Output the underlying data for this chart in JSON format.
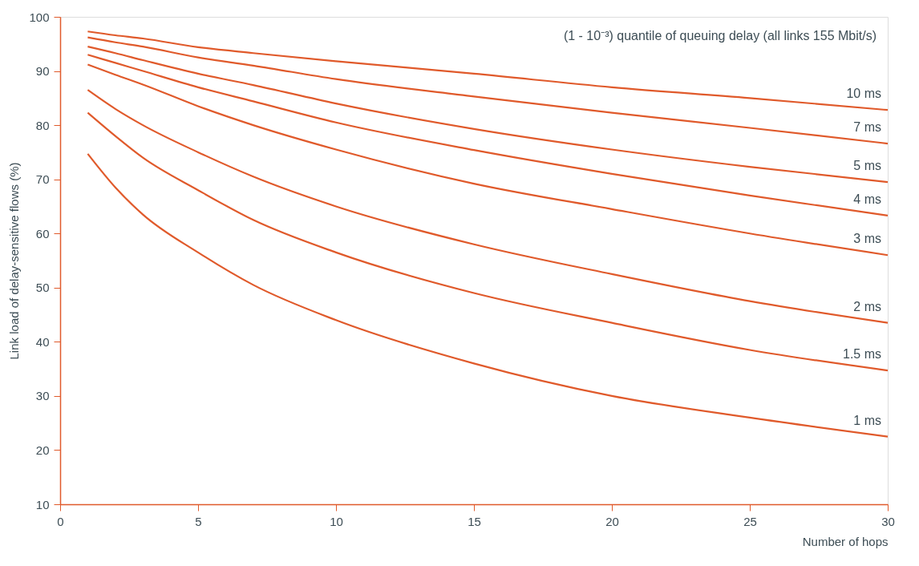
{
  "chart_data": {
    "type": "line",
    "xlabel": "Number of hops",
    "ylabel": "Link load of delay-sensitive flows (%)",
    "annotations": [
      "(1 - 10⁻³) quantile of queuing delay (all links 155 Mbit/s)"
    ],
    "x": [
      1,
      2,
      3,
      5,
      7,
      10,
      15,
      20,
      25,
      30
    ],
    "series": [
      {
        "name": "10 ms",
        "color": "#e05a2b",
        "values": [
          97.3,
          96.6,
          96,
          94.4,
          93.3,
          91.8,
          89.5,
          87,
          85,
          82.8
        ]
      },
      {
        "name": "7 ms",
        "color": "#e05a2b",
        "values": [
          96.2,
          95.3,
          94.5,
          92.5,
          91,
          88.5,
          85.3,
          82.3,
          79.5,
          76.6
        ]
      },
      {
        "name": "5 ms",
        "color": "#e05a2b",
        "values": [
          94.5,
          93.3,
          92,
          89.5,
          87.4,
          84,
          79.3,
          75.5,
          72.3,
          69.5
        ]
      },
      {
        "name": "4 ms",
        "color": "#e05a2b",
        "values": [
          93,
          91.5,
          90,
          87,
          84.4,
          80.5,
          75.4,
          71,
          67,
          63.3
        ]
      },
      {
        "name": "3 ms",
        "color": "#e05a2b",
        "values": [
          91.2,
          89.3,
          87.5,
          83.5,
          80,
          75.5,
          69.2,
          64.5,
          60,
          56
        ]
      },
      {
        "name": "2 ms",
        "color": "#e05a2b",
        "values": [
          86.5,
          83,
          80,
          75,
          70.5,
          65,
          58,
          52.5,
          47.5,
          43.5
        ]
      },
      {
        "name": "1.5 ms",
        "color": "#e05a2b",
        "values": [
          82.3,
          78,
          74,
          68,
          62.5,
          56.5,
          49,
          43.5,
          38.5,
          34.7
        ]
      },
      {
        "name": "1 ms",
        "color": "#e05a2b",
        "values": [
          74.7,
          68.5,
          63.5,
          56.5,
          50.5,
          44,
          36,
          30,
          26,
          22.5
        ]
      }
    ],
    "xlim": [
      0,
      30
    ],
    "ylim": [
      10,
      100
    ],
    "xticks": [
      0,
      5,
      10,
      15,
      20,
      25,
      30
    ],
    "yticks": [
      10,
      20,
      30,
      40,
      50,
      60,
      70,
      80,
      90,
      100
    ],
    "grid": false,
    "legend": false,
    "line_style": "solid",
    "marker": "none"
  }
}
